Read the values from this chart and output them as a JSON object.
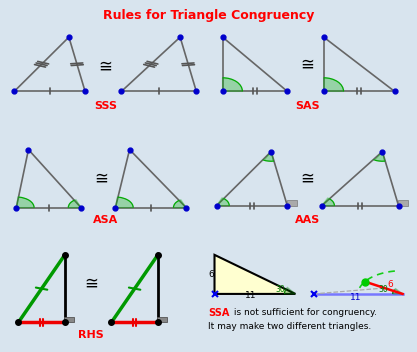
{
  "title": "Rules for Triangle Congruency",
  "title_color": "#FF0000",
  "bg_color": "#D8E4EE",
  "panel_bg": "#FFFFFF",
  "label_color": "#FF0000",
  "dot_color": "#0000CC",
  "line_color": "#555555",
  "green_color": "#00AA00",
  "red_color": "#FF0000",
  "ssa_text1_red": "SSA",
  "ssa_text1_black": " is not sufficient for congruency.",
  "ssa_text2": "It may make two different triangles.",
  "congruent_symbol": "≅"
}
